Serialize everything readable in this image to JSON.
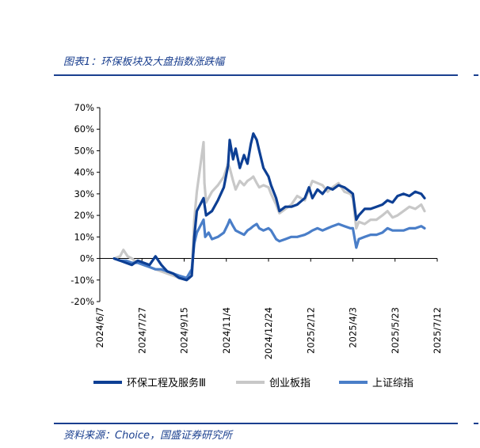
{
  "header": {
    "title": "图表1：环保板块及大盘指数涨跌幅"
  },
  "footer": {
    "source": "资料来源：Choice，国盛证券研究所"
  },
  "colors": {
    "brand": "#1a3f8f"
  },
  "chart_data": {
    "type": "line",
    "ylim": [
      -20,
      70
    ],
    "yticks": [
      -20,
      -10,
      0,
      10,
      20,
      30,
      40,
      50,
      60,
      70
    ],
    "ytick_labels": [
      "-20%",
      "-10%",
      "0%",
      "10%",
      "20%",
      "30%",
      "40%",
      "50%",
      "60%",
      "70%"
    ],
    "xlim": [
      "2024-06-07",
      "2025-07-12"
    ],
    "xticks": [
      "2024-06-07",
      "2024-07-27",
      "2024-09-15",
      "2024-11-04",
      "2024-12-24",
      "2025-02-12",
      "2025-04-03",
      "2025-05-23",
      "2025-07-12"
    ],
    "xtick_labels": [
      "2024/6/7",
      "2024/7/27",
      "2024/9/15",
      "2024/11/4",
      "2024/12/24",
      "2025/2/12",
      "2025/4/3",
      "2025/5/23",
      "2025/7/12"
    ],
    "legend_position": "bottom",
    "series": [
      {
        "name": "环保工程及服务Ⅲ",
        "color": "#0d3f94",
        "points": [
          [
            "2024-06-24",
            0
          ],
          [
            "2024-07-01",
            -1
          ],
          [
            "2024-07-08",
            -2
          ],
          [
            "2024-07-15",
            -3
          ],
          [
            "2024-07-22",
            -1
          ],
          [
            "2024-07-29",
            -2
          ],
          [
            "2024-08-05",
            -3
          ],
          [
            "2024-08-12",
            1
          ],
          [
            "2024-08-19",
            -3
          ],
          [
            "2024-08-26",
            -6
          ],
          [
            "2024-09-02",
            -7
          ],
          [
            "2024-09-09",
            -9
          ],
          [
            "2024-09-18",
            -10
          ],
          [
            "2024-09-24",
            -8
          ],
          [
            "2024-09-27",
            10
          ],
          [
            "2024-09-30",
            22
          ],
          [
            "2024-10-08",
            28
          ],
          [
            "2024-10-11",
            20
          ],
          [
            "2024-10-18",
            22
          ],
          [
            "2024-10-25",
            27
          ],
          [
            "2024-11-01",
            33
          ],
          [
            "2024-11-06",
            43
          ],
          [
            "2024-11-08",
            55
          ],
          [
            "2024-11-12",
            46
          ],
          [
            "2024-11-15",
            51
          ],
          [
            "2024-11-20",
            42
          ],
          [
            "2024-11-25",
            48
          ],
          [
            "2024-11-29",
            44
          ],
          [
            "2024-12-03",
            53
          ],
          [
            "2024-12-06",
            58
          ],
          [
            "2024-12-10",
            55
          ],
          [
            "2024-12-13",
            50
          ],
          [
            "2024-12-18",
            42
          ],
          [
            "2024-12-24",
            38
          ],
          [
            "2024-12-27",
            34
          ],
          [
            "2025-01-02",
            28
          ],
          [
            "2025-01-06",
            22
          ],
          [
            "2025-01-13",
            24
          ],
          [
            "2025-01-20",
            24
          ],
          [
            "2025-01-27",
            25
          ],
          [
            "2025-02-05",
            28
          ],
          [
            "2025-02-10",
            33
          ],
          [
            "2025-02-14",
            28
          ],
          [
            "2025-02-20",
            32
          ],
          [
            "2025-02-26",
            30
          ],
          [
            "2025-03-04",
            33
          ],
          [
            "2025-03-10",
            32
          ],
          [
            "2025-03-17",
            34
          ],
          [
            "2025-03-24",
            33
          ],
          [
            "2025-03-31",
            31
          ],
          [
            "2025-04-03",
            30
          ],
          [
            "2025-04-07",
            18
          ],
          [
            "2025-04-10",
            20
          ],
          [
            "2025-04-17",
            23
          ],
          [
            "2025-04-24",
            23
          ],
          [
            "2025-05-01",
            24
          ],
          [
            "2025-05-08",
            25
          ],
          [
            "2025-05-14",
            27
          ],
          [
            "2025-05-20",
            26
          ],
          [
            "2025-05-26",
            29
          ],
          [
            "2025-06-02",
            30
          ],
          [
            "2025-06-09",
            29
          ],
          [
            "2025-06-16",
            31
          ],
          [
            "2025-06-23",
            30
          ],
          [
            "2025-06-27",
            28
          ]
        ]
      },
      {
        "name": "创业板指",
        "color": "#c8c8c8",
        "points": [
          [
            "2024-06-24",
            0
          ],
          [
            "2024-07-01",
            1
          ],
          [
            "2024-07-05",
            4
          ],
          [
            "2024-07-10",
            1
          ],
          [
            "2024-07-15",
            0
          ],
          [
            "2024-07-22",
            -2
          ],
          [
            "2024-07-29",
            -3
          ],
          [
            "2024-08-05",
            -4
          ],
          [
            "2024-08-12",
            -5
          ],
          [
            "2024-08-19",
            -6
          ],
          [
            "2024-08-26",
            -7
          ],
          [
            "2024-09-02",
            -8
          ],
          [
            "2024-09-09",
            -9
          ],
          [
            "2024-09-18",
            -10
          ],
          [
            "2024-09-24",
            -7
          ],
          [
            "2024-09-27",
            18
          ],
          [
            "2024-09-30",
            31
          ],
          [
            "2024-10-08",
            54
          ],
          [
            "2024-10-09",
            35
          ],
          [
            "2024-10-11",
            26
          ],
          [
            "2024-10-18",
            31
          ],
          [
            "2024-10-25",
            34
          ],
          [
            "2024-11-01",
            38
          ],
          [
            "2024-11-06",
            44
          ],
          [
            "2024-11-08",
            42
          ],
          [
            "2024-11-12",
            36
          ],
          [
            "2024-11-15",
            32
          ],
          [
            "2024-11-20",
            36
          ],
          [
            "2024-11-25",
            34
          ],
          [
            "2024-11-29",
            36
          ],
          [
            "2024-12-03",
            37
          ],
          [
            "2024-12-06",
            38
          ],
          [
            "2024-12-10",
            35
          ],
          [
            "2024-12-13",
            33
          ],
          [
            "2024-12-18",
            34
          ],
          [
            "2024-12-24",
            33
          ],
          [
            "2024-12-27",
            30
          ],
          [
            "2025-01-02",
            25
          ],
          [
            "2025-01-06",
            21
          ],
          [
            "2025-01-13",
            23
          ],
          [
            "2025-01-20",
            25
          ],
          [
            "2025-01-27",
            29
          ],
          [
            "2025-02-05",
            27
          ],
          [
            "2025-02-10",
            32
          ],
          [
            "2025-02-14",
            36
          ],
          [
            "2025-02-20",
            35
          ],
          [
            "2025-02-26",
            34
          ],
          [
            "2025-03-04",
            31
          ],
          [
            "2025-03-10",
            33
          ],
          [
            "2025-03-17",
            35
          ],
          [
            "2025-03-24",
            31
          ],
          [
            "2025-03-31",
            30
          ],
          [
            "2025-04-03",
            28
          ],
          [
            "2025-04-07",
            14
          ],
          [
            "2025-04-10",
            17
          ],
          [
            "2025-04-17",
            16
          ],
          [
            "2025-04-24",
            18
          ],
          [
            "2025-05-01",
            18
          ],
          [
            "2025-05-08",
            20
          ],
          [
            "2025-05-14",
            22
          ],
          [
            "2025-05-20",
            19
          ],
          [
            "2025-05-26",
            20
          ],
          [
            "2025-06-02",
            22
          ],
          [
            "2025-06-09",
            24
          ],
          [
            "2025-06-16",
            23
          ],
          [
            "2025-06-23",
            25
          ],
          [
            "2025-06-27",
            22
          ]
        ]
      },
      {
        "name": "上证综指",
        "color": "#4a7ec8",
        "points": [
          [
            "2024-06-24",
            0
          ],
          [
            "2024-07-01",
            -1
          ],
          [
            "2024-07-08",
            -1
          ],
          [
            "2024-07-15",
            -2
          ],
          [
            "2024-07-22",
            -2
          ],
          [
            "2024-07-29",
            -3
          ],
          [
            "2024-08-05",
            -4
          ],
          [
            "2024-08-12",
            -5
          ],
          [
            "2024-08-19",
            -5
          ],
          [
            "2024-08-26",
            -6
          ],
          [
            "2024-09-02",
            -7
          ],
          [
            "2024-09-09",
            -8
          ],
          [
            "2024-09-18",
            -9
          ],
          [
            "2024-09-24",
            -5
          ],
          [
            "2024-09-27",
            7
          ],
          [
            "2024-09-30",
            12
          ],
          [
            "2024-10-08",
            18
          ],
          [
            "2024-10-10",
            10
          ],
          [
            "2024-10-14",
            12
          ],
          [
            "2024-10-18",
            9
          ],
          [
            "2024-10-25",
            10
          ],
          [
            "2024-11-01",
            12
          ],
          [
            "2024-11-06",
            16
          ],
          [
            "2024-11-08",
            18
          ],
          [
            "2024-11-12",
            15
          ],
          [
            "2024-11-15",
            13
          ],
          [
            "2024-11-20",
            12
          ],
          [
            "2024-11-25",
            11
          ],
          [
            "2024-11-29",
            13
          ],
          [
            "2024-12-03",
            14
          ],
          [
            "2024-12-06",
            15
          ],
          [
            "2024-12-10",
            16
          ],
          [
            "2024-12-13",
            14
          ],
          [
            "2024-12-18",
            13
          ],
          [
            "2024-12-24",
            14
          ],
          [
            "2024-12-27",
            13
          ],
          [
            "2025-01-02",
            9
          ],
          [
            "2025-01-06",
            8
          ],
          [
            "2025-01-13",
            9
          ],
          [
            "2025-01-20",
            10
          ],
          [
            "2025-01-27",
            10
          ],
          [
            "2025-02-05",
            11
          ],
          [
            "2025-02-10",
            12
          ],
          [
            "2025-02-14",
            13
          ],
          [
            "2025-02-20",
            14
          ],
          [
            "2025-02-26",
            13
          ],
          [
            "2025-03-04",
            14
          ],
          [
            "2025-03-10",
            15
          ],
          [
            "2025-03-17",
            16
          ],
          [
            "2025-03-24",
            15
          ],
          [
            "2025-03-31",
            14
          ],
          [
            "2025-04-03",
            14
          ],
          [
            "2025-04-07",
            5
          ],
          [
            "2025-04-10",
            9
          ],
          [
            "2025-04-17",
            10
          ],
          [
            "2025-04-24",
            11
          ],
          [
            "2025-05-01",
            11
          ],
          [
            "2025-05-08",
            12
          ],
          [
            "2025-05-14",
            14
          ],
          [
            "2025-05-20",
            13
          ],
          [
            "2025-05-26",
            13
          ],
          [
            "2025-06-02",
            13
          ],
          [
            "2025-06-09",
            14
          ],
          [
            "2025-06-16",
            14
          ],
          [
            "2025-06-23",
            15
          ],
          [
            "2025-06-27",
            14
          ]
        ]
      }
    ]
  }
}
